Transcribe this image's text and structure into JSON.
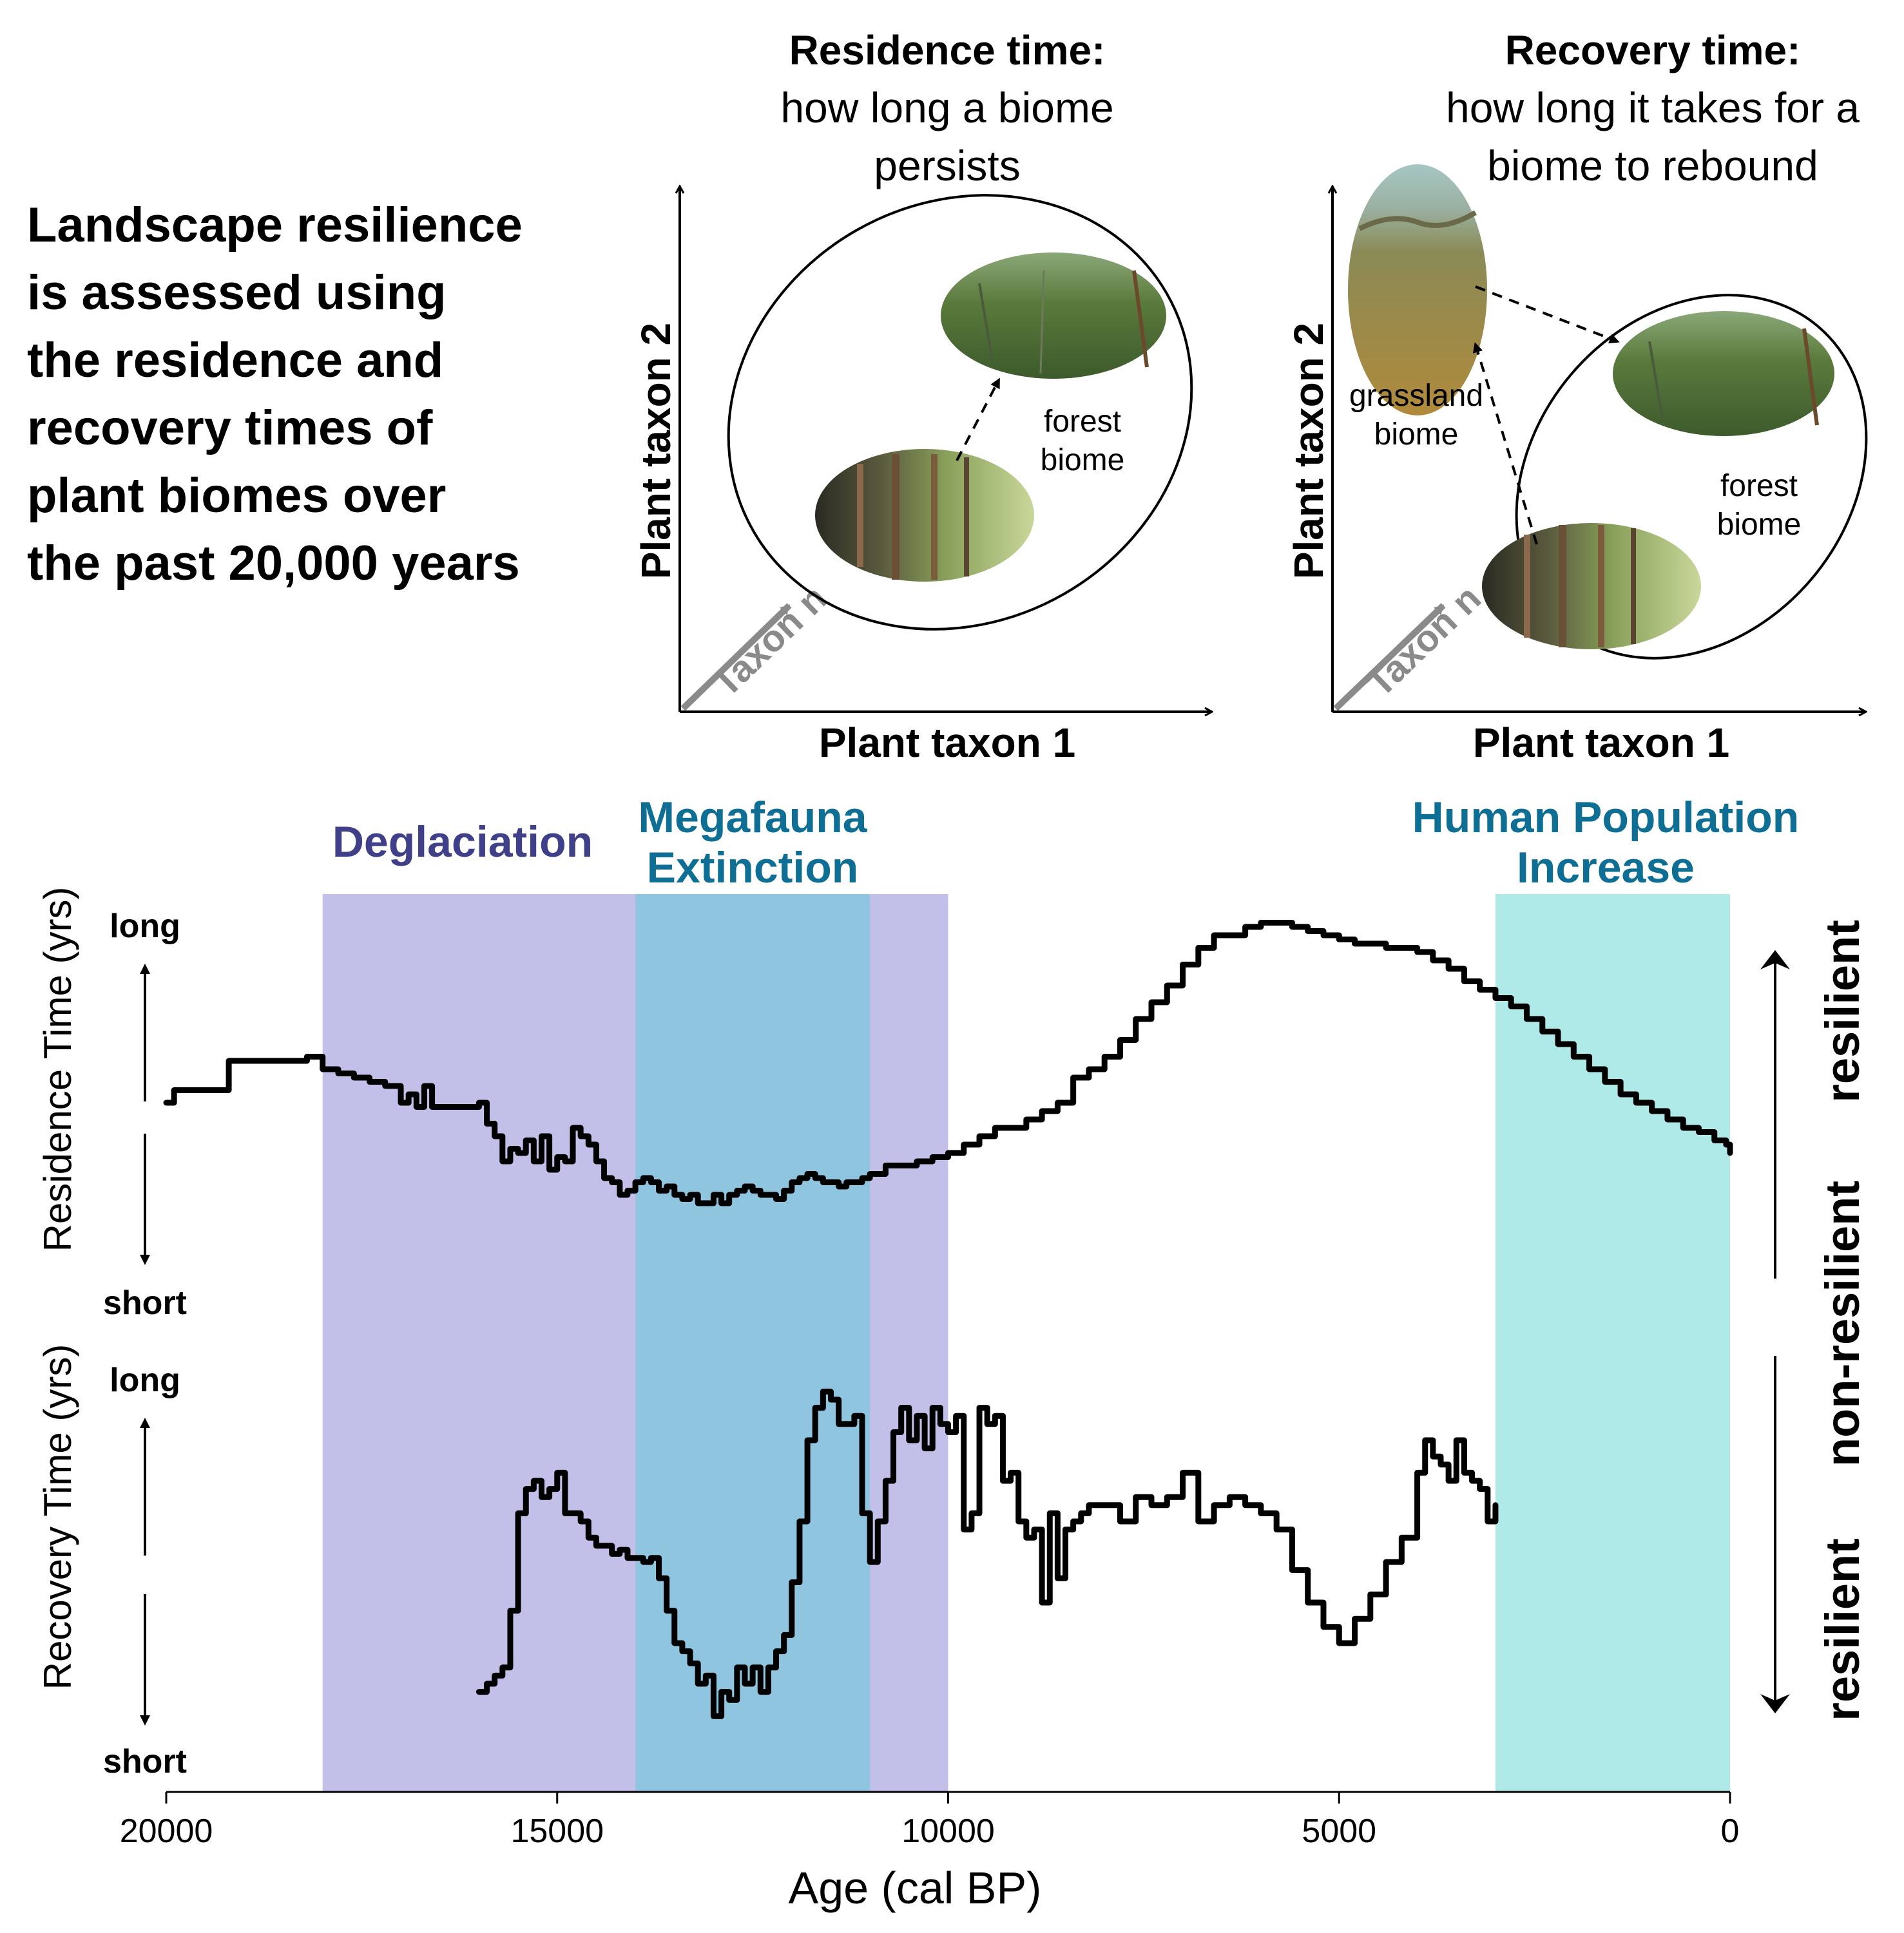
{
  "intro": {
    "lines": [
      "Landscape resilience",
      "is assessed using",
      "the residence and",
      "recovery times of",
      "plant biomes over",
      "the past 20,000 years"
    ]
  },
  "panel_residence": {
    "title": "Residence time:",
    "subtitle_lines": [
      "how long a biome",
      "persists"
    ],
    "xlabel": "Plant taxon 1",
    "ylabel": "Plant taxon 2",
    "zlabel": "Taxon n",
    "biome_label_lines": [
      "forest",
      "biome"
    ]
  },
  "panel_recovery": {
    "title": "Recovery time:",
    "subtitle_lines": [
      "how long it takes for a",
      "biome to rebound"
    ],
    "xlabel": "Plant taxon 1",
    "ylabel": "Plant taxon 2",
    "zlabel": "Taxon n",
    "grassland_label_lines": [
      "grassland",
      "biome"
    ],
    "forest_label_lines": [
      "forest",
      "biome"
    ]
  },
  "colors": {
    "deglaciation": "#c2c0e9",
    "megafauna": "#8fc5df",
    "human": "#afeae8",
    "deglaciation_text": "#40408a",
    "teal_text": "#0f6e94"
  },
  "icons": [
    "forest-photo-icon",
    "redwood-photo-icon",
    "grassland-photo-icon",
    "arrow-up-icon",
    "arrow-down-icon"
  ],
  "chart_data": {
    "type": "line",
    "xlabel": "Age (cal BP)",
    "xlim": [
      20000,
      0
    ],
    "x_reversed": true,
    "xticks": [
      20000,
      15000,
      10000,
      5000,
      0
    ],
    "xtick_labels": [
      "20000",
      "15000",
      "10000",
      "5000",
      "0"
    ],
    "y_numeric_ticks": false,
    "grid": false,
    "upper_panel": {
      "ylabel": "Residence Time (yrs)",
      "top_label": "long",
      "bottom_label": "short",
      "right_label_top": "resilient",
      "right_label_bottom": "non-resilient",
      "ylim": [
        0,
        100
      ]
    },
    "lower_panel": {
      "ylabel": "Recovery Time (yrs)",
      "top_label": "long",
      "bottom_label": "short",
      "right_label": "resilient",
      "ylim": [
        0,
        100
      ]
    },
    "periods": [
      {
        "label_lines": [
          "Deglaciation"
        ],
        "start": 18000,
        "end": 10000
      },
      {
        "label_lines": [
          "Megafauna",
          "Extinction"
        ],
        "start": 14000,
        "end": 11000
      },
      {
        "label_lines": [
          "Human Population",
          "Increase"
        ],
        "start": 3000,
        "end": 0
      }
    ],
    "series": [
      {
        "panel": "upper",
        "x": [
          20000,
          19900,
          19800,
          19600,
          19400,
          19200,
          19000,
          18800,
          18600,
          18400,
          18200,
          18000,
          17800,
          17600,
          17400,
          17200,
          17000,
          16900,
          16800,
          16700,
          16600,
          16500,
          16400,
          16200,
          16000,
          15900,
          15800,
          15700,
          15600,
          15500,
          15400,
          15300,
          15200,
          15100,
          15000,
          14900,
          14800,
          14700,
          14600,
          14500,
          14400,
          14300,
          14200,
          14100,
          14000,
          13900,
          13800,
          13700,
          13600,
          13500,
          13400,
          13300,
          13200,
          13100,
          13000,
          12900,
          12800,
          12700,
          12600,
          12500,
          12400,
          12300,
          12200,
          12100,
          12000,
          11900,
          11800,
          11700,
          11600,
          11500,
          11400,
          11300,
          11200,
          11100,
          11000,
          10800,
          10600,
          10400,
          10200,
          10000,
          9800,
          9600,
          9400,
          9200,
          9000,
          8800,
          8600,
          8400,
          8200,
          8000,
          7800,
          7600,
          7400,
          7200,
          7000,
          6800,
          6600,
          6400,
          6200,
          6000,
          5800,
          5600,
          5400,
          5200,
          5000,
          4800,
          4600,
          4400,
          4200,
          4000,
          3800,
          3600,
          3400,
          3200,
          3000,
          2800,
          2600,
          2400,
          2200,
          2000,
          1800,
          1600,
          1400,
          1200,
          1000,
          800,
          600,
          400,
          200,
          50,
          0
        ],
        "y": [
          52,
          55,
          55,
          55,
          55,
          62,
          62,
          62,
          62,
          62,
          63,
          60,
          59,
          58,
          57,
          56,
          52,
          54,
          51,
          56,
          51,
          51,
          51,
          51,
          52,
          47,
          44,
          38,
          41,
          40,
          43,
          38,
          44,
          36,
          39,
          38,
          46,
          44,
          42,
          38,
          34,
          33,
          30,
          31,
          33,
          34,
          33,
          31,
          32,
          30,
          29,
          30,
          28,
          28,
          30,
          28,
          30,
          31,
          32,
          31,
          30,
          30,
          29,
          31,
          33,
          34,
          35,
          34,
          33,
          33,
          32,
          33,
          33,
          34,
          35,
          37,
          37,
          38,
          39,
          40,
          42,
          44,
          46,
          46,
          48,
          50,
          52,
          58,
          60,
          63,
          67,
          72,
          76,
          80,
          85,
          89,
          92,
          92,
          94,
          95,
          95,
          94,
          93,
          92,
          91,
          90,
          90,
          89,
          89,
          88,
          86,
          84,
          81,
          79,
          77,
          75,
          72,
          69,
          66,
          63,
          60,
          57,
          54,
          52,
          50,
          48,
          46,
          45,
          43,
          42,
          40
        ]
      },
      {
        "panel": "lower",
        "x": [
          16000,
          15900,
          15800,
          15700,
          15600,
          15500,
          15400,
          15300,
          15200,
          15100,
          15000,
          14900,
          14800,
          14700,
          14600,
          14500,
          14400,
          14300,
          14200,
          14100,
          14000,
          13900,
          13800,
          13700,
          13600,
          13500,
          13400,
          13300,
          13200,
          13100,
          13000,
          12900,
          12800,
          12700,
          12600,
          12500,
          12400,
          12300,
          12200,
          12100,
          12000,
          11900,
          11800,
          11700,
          11600,
          11500,
          11400,
          11300,
          11200,
          11100,
          11000,
          10900,
          10800,
          10700,
          10600,
          10500,
          10400,
          10300,
          10200,
          10100,
          10000,
          9900,
          9800,
          9700,
          9600,
          9500,
          9400,
          9300,
          9200,
          9100,
          9000,
          8900,
          8800,
          8700,
          8600,
          8500,
          8400,
          8300,
          8200,
          8000,
          7800,
          7600,
          7400,
          7200,
          7000,
          6800,
          6600,
          6400,
          6200,
          6000,
          5800,
          5600,
          5400,
          5200,
          5000,
          4800,
          4600,
          4400,
          4200,
          4000,
          3900,
          3800,
          3700,
          3600,
          3500,
          3400,
          3300,
          3200,
          3100,
          3000
        ],
        "y": [
          18,
          20,
          22,
          24,
          38,
          62,
          68,
          70,
          66,
          68,
          72,
          62,
          62,
          60,
          56,
          54,
          54,
          52,
          53,
          51,
          51,
          50,
          51,
          46,
          38,
          30,
          28,
          25,
          20,
          22,
          12,
          18,
          16,
          24,
          20,
          24,
          18,
          24,
          28,
          32,
          45,
          60,
          80,
          88,
          92,
          90,
          84,
          84,
          86,
          62,
          50,
          60,
          70,
          82,
          88,
          80,
          86,
          78,
          88,
          84,
          82,
          86,
          58,
          62,
          88,
          84,
          86,
          70,
          72,
          60,
          56,
          58,
          40,
          62,
          46,
          58,
          60,
          62,
          64,
          64,
          60,
          66,
          64,
          66,
          72,
          60,
          64,
          66,
          64,
          62,
          58,
          48,
          40,
          34,
          30,
          36,
          42,
          50,
          56,
          72,
          80,
          76,
          74,
          70,
          80,
          72,
          70,
          68,
          60,
          64
        ]
      }
    ]
  }
}
